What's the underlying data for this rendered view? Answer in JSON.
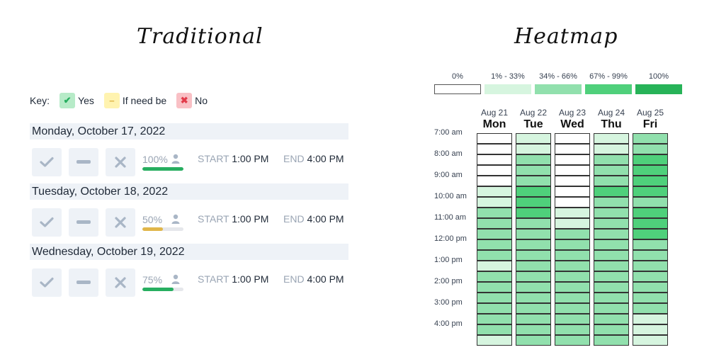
{
  "titles": {
    "traditional": "Traditional",
    "heatmap": "Heatmap"
  },
  "key": {
    "label": "Key:",
    "yes": {
      "label": "Yes",
      "bg": "#b7ebc8",
      "fg": "#27ae60"
    },
    "maybe": {
      "label": "If need be",
      "bg": "#fff3b0",
      "fg": "#e0b64a"
    },
    "no": {
      "label": "No",
      "bg": "#f9c0c5",
      "fg": "#e23b4a"
    }
  },
  "days": [
    {
      "date": "Monday, October 17, 2022",
      "percent": "100%",
      "fill": 1.0,
      "fill_color": "#27ae60",
      "start_label": "START",
      "start_time": "1:00 PM",
      "end_label": "END",
      "end_time": "4:00 PM"
    },
    {
      "date": "Tuesday, October 18, 2022",
      "percent": "50%",
      "fill": 0.5,
      "fill_color": "#e0b64a",
      "start_label": "START",
      "start_time": "1:00 PM",
      "end_label": "END",
      "end_time": "4:00 PM"
    },
    {
      "date": "Wednesday, October 19, 2022",
      "percent": "75%",
      "fill": 0.75,
      "fill_color": "#27ae60",
      "start_label": "START",
      "start_time": "1:00 PM",
      "end_label": "END",
      "end_time": "4:00 PM"
    }
  ],
  "heatmap": {
    "legend": [
      {
        "label": "0%",
        "color": "#ffffff"
      },
      {
        "label": "1% - 33%",
        "color": "#d6f5df"
      },
      {
        "label": "34% - 66%",
        "color": "#91e0ad"
      },
      {
        "label": "67% - 99%",
        "color": "#4fd07b"
      },
      {
        "label": "100%",
        "color": "#27b358"
      }
    ],
    "columns": [
      {
        "date": "Aug 21",
        "day": "Mon"
      },
      {
        "date": "Aug 22",
        "day": "Tue"
      },
      {
        "date": "Aug 23",
        "day": "Wed"
      },
      {
        "date": "Aug 24",
        "day": "Thu"
      },
      {
        "date": "Aug 25",
        "day": "Fri"
      }
    ],
    "times": [
      "7:00 am",
      "8:00 am",
      "9:00 am",
      "10:00 am",
      "11:00 am",
      "12:00 pm",
      "1:00 pm",
      "2:00 pm",
      "3:00 pm",
      "4:00 pm"
    ],
    "levels": [
      [
        0,
        1,
        0,
        1,
        2
      ],
      [
        0,
        1,
        0,
        1,
        2
      ],
      [
        0,
        2,
        0,
        2,
        3
      ],
      [
        0,
        2,
        0,
        2,
        3
      ],
      [
        0,
        2,
        0,
        2,
        3
      ],
      [
        1,
        3,
        0,
        3,
        3
      ],
      [
        1,
        3,
        0,
        2,
        2
      ],
      [
        2,
        3,
        1,
        2,
        3
      ],
      [
        2,
        2,
        1,
        2,
        3
      ],
      [
        2,
        2,
        2,
        2,
        3
      ],
      [
        2,
        2,
        2,
        2,
        2
      ],
      [
        2,
        2,
        2,
        2,
        2
      ],
      [
        1,
        2,
        2,
        2,
        2
      ],
      [
        2,
        2,
        2,
        2,
        2
      ],
      [
        2,
        2,
        2,
        2,
        2
      ],
      [
        2,
        2,
        2,
        2,
        2
      ],
      [
        2,
        2,
        2,
        2,
        2
      ],
      [
        2,
        2,
        2,
        2,
        1
      ],
      [
        2,
        2,
        2,
        2,
        1
      ],
      [
        1,
        2,
        2,
        2,
        1
      ]
    ]
  }
}
